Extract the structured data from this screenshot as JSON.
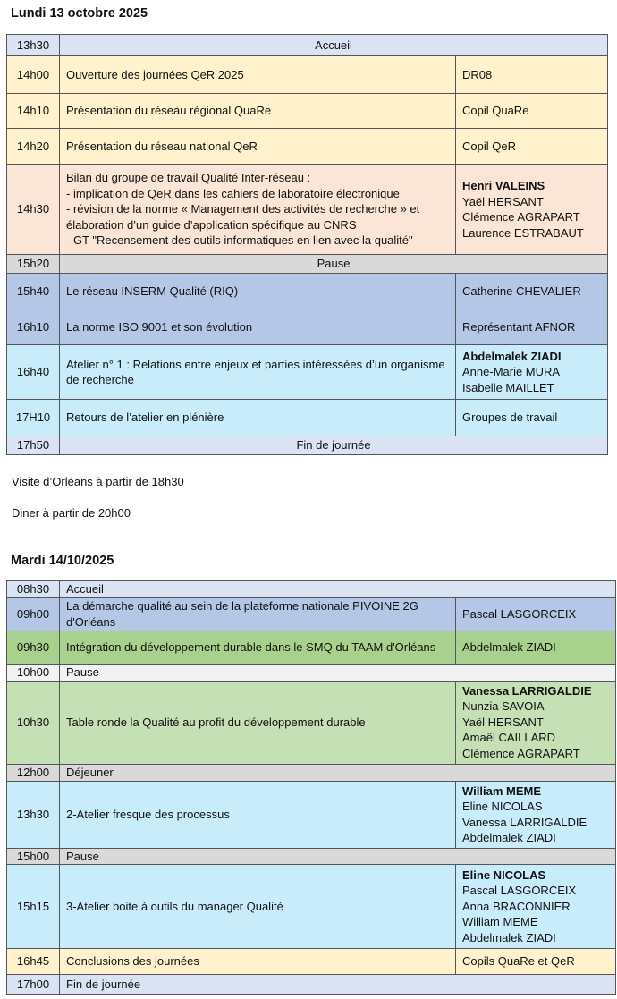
{
  "day1": {
    "title": "Lundi 13 octobre 2025",
    "rows": [
      {
        "time": "13h30",
        "title": "Accueil",
        "span": true,
        "color": "#dae3f3",
        "h": 24
      },
      {
        "time": "14h00",
        "title": "Ouverture des journées QeR 2025",
        "speakers": [
          "DR08"
        ],
        "color": "#fff2cc",
        "h": 42
      },
      {
        "time": "14h10",
        "title": "Présentation du réseau régional QuaRe",
        "speakers": [
          "Copil QuaRe"
        ],
        "color": "#fff2cc",
        "h": 39
      },
      {
        "time": "14h20",
        "title": "Présentation du réseau national QeR",
        "speakers": [
          "Copil QeR"
        ],
        "color": "#fff2cc",
        "h": 40
      },
      {
        "time": "14h30",
        "title": "Bilan du groupe de travail Qualité Inter-réseau :\n- implication de QeR dans les cahiers de laboratoire électronique\n- révision de la norme « Management des activités de recherche » et élaboration d’un guide d’application spécifique au CNRS\n- GT \"Recensement des outils informatiques en lien avec la qualité\"",
        "speakers": [
          "Henri VALEINS",
          "Yaël HERSANT",
          "Clémence AGRAPART",
          "Laurence ESTRABAUT"
        ],
        "bold_first": true,
        "color": "#fbe5d6",
        "h": 101
      },
      {
        "time": "15h20",
        "title": "Pause",
        "span": true,
        "color": "#d9d9d9",
        "h": 21
      },
      {
        "time": "15h40",
        "title": "Le réseau INSERM Qualité (RIQ)",
        "speakers": [
          "Catherine CHEVALIER"
        ],
        "color": "#b4c7e7",
        "h": 40
      },
      {
        "time": "16h10",
        "title": "La norme ISO 9001 et son évolution",
        "speakers": [
          "Représentant AFNOR"
        ],
        "color": "#b4c7e7",
        "h": 40
      },
      {
        "time": "16h40",
        "title": "Atelier n° 1 : Relations entre enjeux et parties intéressées d’un organisme de recherche",
        "speakers": [
          "Abdelmalek ZIADI",
          "Anne-Marie MURA",
          "Isabelle MAILLET"
        ],
        "bold_first": true,
        "color": "#c9ecfb",
        "h": 61
      },
      {
        "time": "17H10",
        "title": "Retours de l’atelier en plénière",
        "speakers": [
          "Groupes de travail"
        ],
        "color": "#c9ecfb",
        "h": 41
      },
      {
        "time": "17h50",
        "title": "Fin de journée",
        "span": true,
        "color": "#dae3f3",
        "h": 21
      }
    ]
  },
  "notes": [
    "Visite d’Orléans à partir de 18h30",
    "Diner à partir de 20h00"
  ],
  "day2": {
    "title": "Mardi 14/10/2025",
    "rows": [
      {
        "time": "08h30",
        "title": "Accueil",
        "span": true,
        "left": true,
        "color": "#dae3f3",
        "h": 18
      },
      {
        "time": "09h00",
        "title": "La démarche qualité au sein de la plateforme nationale PIVOINE 2G d'Orléans",
        "speakers": [
          "Pascal LASGORCEIX"
        ],
        "color": "#b4c7e7",
        "h": 37
      },
      {
        "time": "09h30",
        "title": "Intégration du développement durable dans le SMQ du TAAM d'Orléans",
        "speakers": [
          "Abdelmalek  ZIADI"
        ],
        "color": "#a9d18e",
        "h": 37
      },
      {
        "time": "10h00",
        "title": "Pause",
        "span": true,
        "left": true,
        "color": "#f2f2f2",
        "h": 19
      },
      {
        "time": "10h30",
        "title": "Table ronde la Qualité au profit du développement durable",
        "speakers": [
          "Vanessa LARRIGALDIE",
          "Nunzia  SAVOIA",
          "Yaël HERSANT",
          "Amaël  CAILLARD",
          "Clémence AGRAPART"
        ],
        "bold_first": true,
        "color": "#c5e0b4",
        "h": 93
      },
      {
        "time": "12h00",
        "title": "Déjeuner",
        "span": true,
        "left": true,
        "color": "#d9d9d9",
        "h": 19
      },
      {
        "time": "13h30",
        "title": "2-Atelier fresque des processus",
        "speakers": [
          "William MEME",
          "Eline NICOLAS",
          "Vanessa LARRIGALDIE",
          "Abdelmalek  ZIADI"
        ],
        "bold_first": true,
        "color": "#c9ecfb",
        "h": 75
      },
      {
        "time": "15h00",
        "title": "Pause",
        "span": true,
        "left": true,
        "color": "#d9d9d9",
        "h": 18
      },
      {
        "time": "15h15",
        "title": "3-Atelier boite à outils du manager Qualité",
        "speakers": [
          "Eline NICOLAS",
          "Pascal LASGORCEIX",
          "Anna BRACONNIER",
          "William MEME",
          "Abdelmalek  ZIADI"
        ],
        "bold_first": true,
        "color": "#c9ecfb",
        "h": 94
      },
      {
        "time": "16h45",
        "title": "Conclusions des journées",
        "speakers": [
          "Copils QuaRe et QeR"
        ],
        "color": "#fff2cc",
        "h": 29
      },
      {
        "time": "17h00",
        "title": "Fin de journée",
        "span": true,
        "left": true,
        "color": "#dae3f3",
        "h": 22
      }
    ]
  }
}
